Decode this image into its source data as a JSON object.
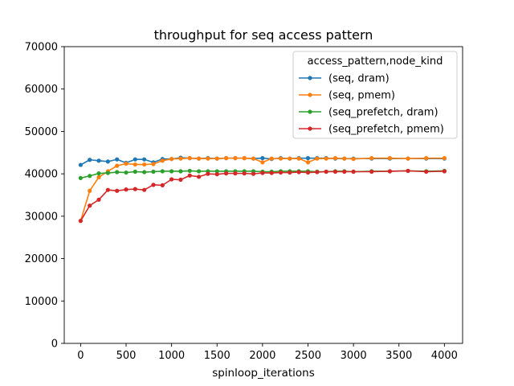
{
  "chart_data": {
    "type": "line",
    "title": "throughput for seq access pattern",
    "xlabel": "spinloop_iterations",
    "ylabel": "",
    "xlim": [
      -180,
      4200
    ],
    "ylim": [
      0,
      70000
    ],
    "xticks": [
      0,
      500,
      1000,
      1500,
      2000,
      2500,
      3000,
      3500,
      4000
    ],
    "yticks": [
      0,
      10000,
      20000,
      30000,
      40000,
      50000,
      60000,
      70000
    ],
    "grid": false,
    "legend": {
      "title": "access_pattern,node_kind",
      "placement": "top-right"
    },
    "series": [
      {
        "name": "(seq, dram)",
        "color": "#1f77b4",
        "x": [
          0,
          100,
          200,
          300,
          400,
          500,
          600,
          700,
          800,
          900,
          1000,
          1100,
          1200,
          1300,
          1400,
          1500,
          1600,
          1700,
          1800,
          1900,
          2000,
          2100,
          2200,
          2300,
          2400,
          2500,
          2600,
          2700,
          2800,
          2900,
          3000,
          3200,
          3400,
          3600,
          3800,
          4000
        ],
        "y": [
          42100,
          43300,
          43100,
          42900,
          43400,
          42600,
          43400,
          43400,
          42700,
          43500,
          43500,
          43800,
          43700,
          43600,
          43700,
          43600,
          43700,
          43700,
          43700,
          43600,
          43700,
          43500,
          43700,
          43600,
          43700,
          43700,
          43700,
          43700,
          43600,
          43600,
          43600,
          43600,
          43600,
          43600,
          43600,
          43600
        ]
      },
      {
        "name": "(seq, pmem)",
        "color": "#ff7f0e",
        "x": [
          0,
          100,
          200,
          300,
          400,
          500,
          600,
          700,
          800,
          900,
          1000,
          1100,
          1200,
          1300,
          1400,
          1500,
          1600,
          1700,
          1800,
          1900,
          2000,
          2100,
          2200,
          2300,
          2400,
          2500,
          2600,
          2700,
          2800,
          2900,
          3000,
          3200,
          3400,
          3600,
          3800,
          4000
        ],
        "y": [
          28900,
          36000,
          39200,
          40600,
          41900,
          42400,
          42200,
          42200,
          42300,
          43100,
          43500,
          43600,
          43700,
          43600,
          43600,
          43600,
          43700,
          43700,
          43700,
          43600,
          42700,
          43600,
          43600,
          43600,
          43600,
          42700,
          43600,
          43600,
          43700,
          43600,
          43500,
          43700,
          43700,
          43600,
          43700,
          43700
        ]
      },
      {
        "name": "(seq_prefetch, dram)",
        "color": "#2ca02c",
        "x": [
          0,
          100,
          200,
          300,
          400,
          500,
          600,
          700,
          800,
          900,
          1000,
          1100,
          1200,
          1300,
          1400,
          1500,
          1600,
          1700,
          1800,
          1900,
          2000,
          2100,
          2200,
          2300,
          2400,
          2500,
          2600,
          2700,
          2800,
          2900,
          3000,
          3200,
          3400,
          3600,
          3800,
          4000
        ],
        "y": [
          39000,
          39500,
          40100,
          40200,
          40400,
          40300,
          40500,
          40400,
          40500,
          40600,
          40600,
          40600,
          40700,
          40600,
          40600,
          40600,
          40600,
          40600,
          40600,
          40600,
          40500,
          40500,
          40600,
          40600,
          40600,
          40600,
          40500,
          40500,
          40600,
          40600,
          40500,
          40600,
          40600,
          40700,
          40600,
          40700
        ]
      },
      {
        "name": "(seq_prefetch, pmem)",
        "color": "#d62728",
        "x": [
          0,
          100,
          200,
          300,
          400,
          500,
          600,
          700,
          800,
          900,
          1000,
          1100,
          1200,
          1300,
          1400,
          1500,
          1600,
          1700,
          1800,
          1900,
          2000,
          2100,
          2200,
          2300,
          2400,
          2500,
          2600,
          2700,
          2800,
          2900,
          3000,
          3200,
          3400,
          3600,
          3800,
          4000
        ],
        "y": [
          28900,
          32500,
          33900,
          36200,
          36000,
          36300,
          36400,
          36200,
          37400,
          37300,
          38700,
          38600,
          39600,
          39300,
          40000,
          39900,
          40100,
          40100,
          40100,
          40000,
          40200,
          40200,
          40300,
          40300,
          40400,
          40300,
          40400,
          40500,
          40500,
          40500,
          40500,
          40500,
          40600,
          40700,
          40500,
          40600
        ]
      }
    ]
  }
}
